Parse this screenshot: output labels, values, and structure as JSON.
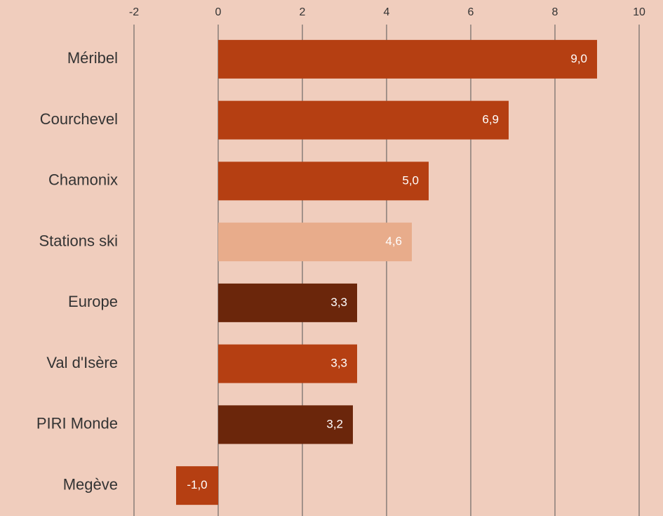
{
  "chart_data": {
    "type": "barh",
    "categories": [
      "Méribel",
      "Courchevel",
      "Chamonix",
      "Stations ski",
      "Europe",
      "Val d'Isère",
      "PIRI Monde",
      "Megève"
    ],
    "values": [
      9.0,
      6.9,
      5.0,
      4.6,
      3.3,
      3.3,
      3.2,
      -1.0
    ],
    "value_labels": [
      "9,0",
      "6,9",
      "5,0",
      "4,6",
      "3,3",
      "3,3",
      "3,2",
      "-1,0"
    ],
    "colors": [
      "#b53f12",
      "#b53f12",
      "#b53f12",
      "#e8ac8b",
      "#6b260b",
      "#b53f12",
      "#6b260b",
      "#b53f12"
    ],
    "xlim": [
      -2,
      10
    ],
    "xticks": [
      -2,
      0,
      2,
      4,
      6,
      8,
      10
    ],
    "grid": true
  }
}
